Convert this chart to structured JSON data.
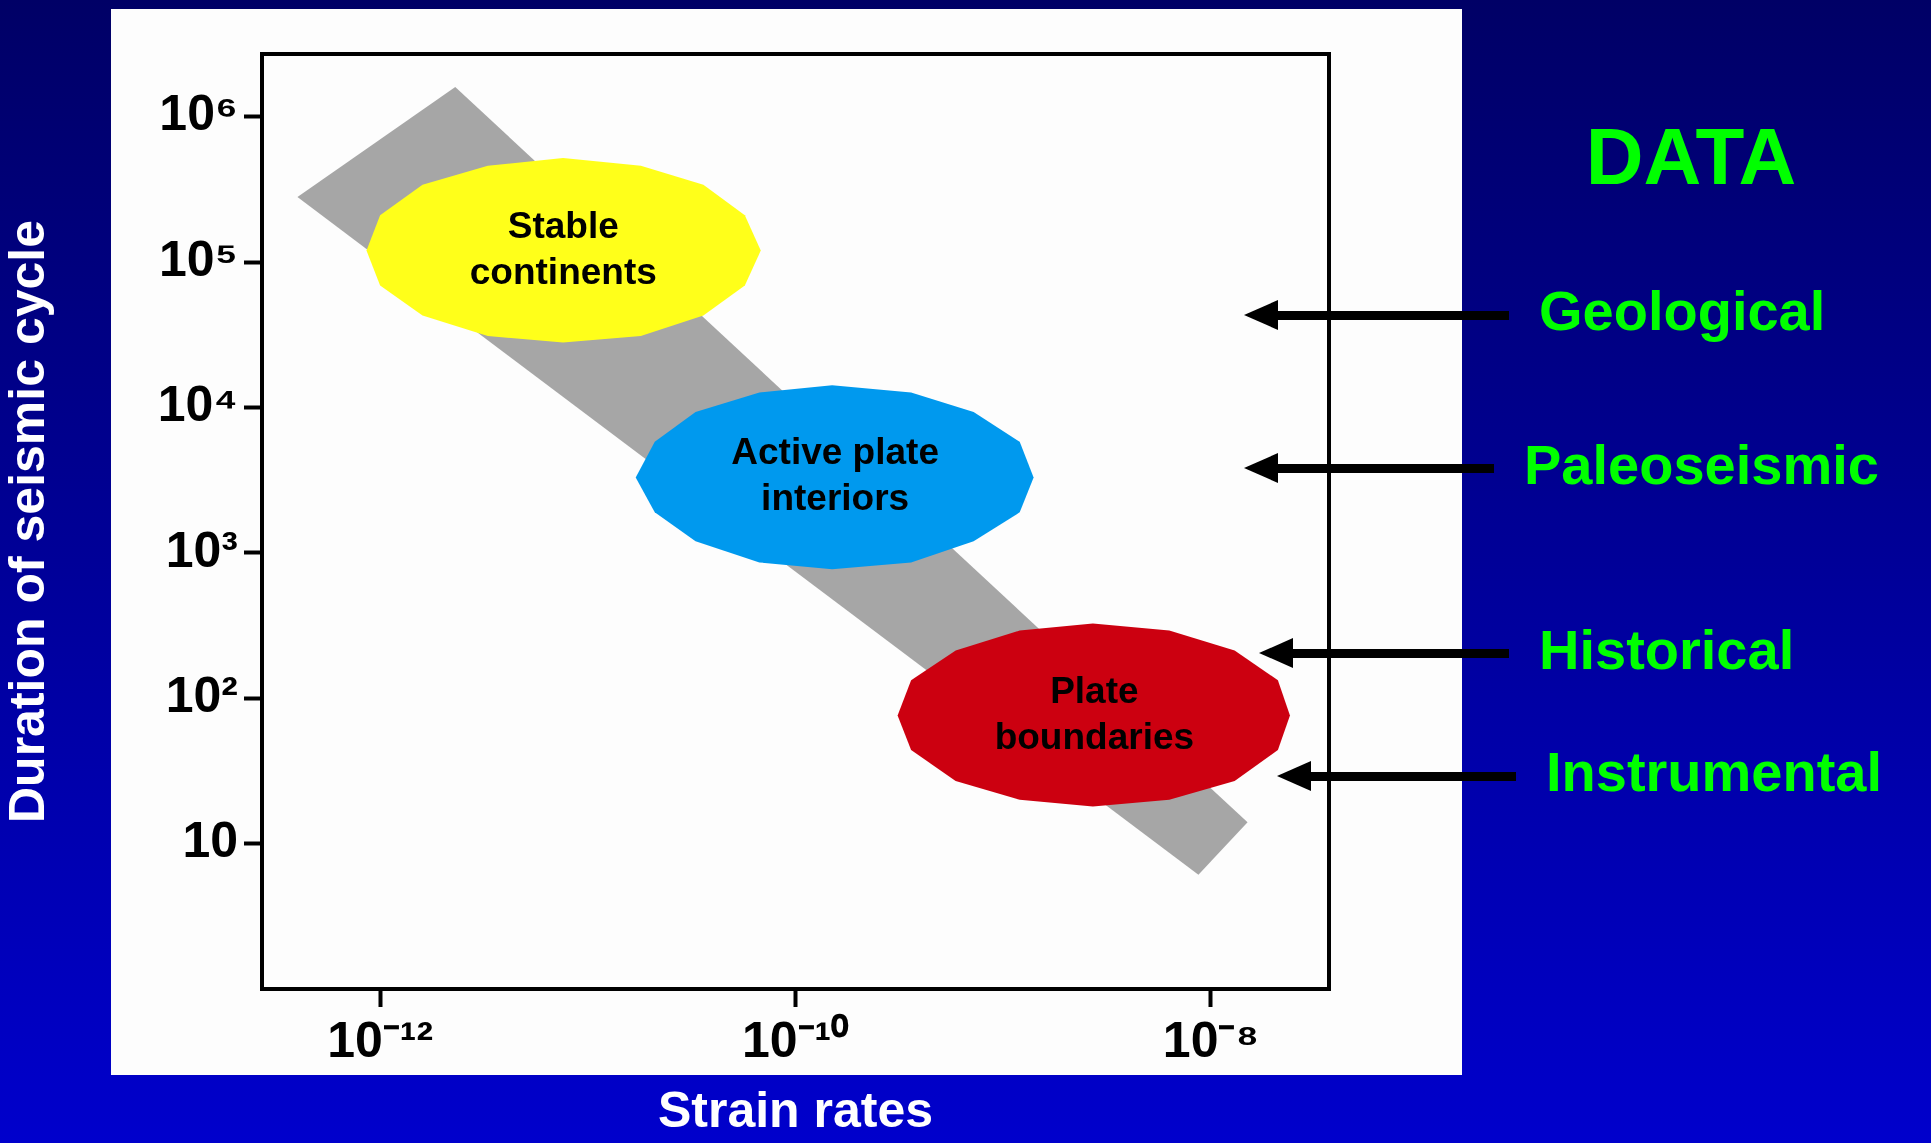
{
  "chart_data": {
    "type": "area",
    "xlabel": "Strain rates",
    "ylabel": "Duration of seismic cycle",
    "log": "xy",
    "grid": false,
    "legend": false,
    "xlim": [
      2.7e-13,
      3.7e-08
    ],
    "ylim": [
      1,
      2700000.0
    ],
    "xticks": [
      {
        "value": 1e-12,
        "label": "10⁻¹²"
      },
      {
        "value": 1e-10,
        "label": "10⁻¹⁰"
      },
      {
        "value": 1e-08,
        "label": "10⁻⁸"
      }
    ],
    "yticks": [
      10,
      {
        "value": 100,
        "label": "10²"
      },
      {
        "value": 1000,
        "label": "10³"
      },
      {
        "value": 10000,
        "label": "10⁴"
      },
      {
        "value": 100000,
        "label": "10⁵"
      },
      {
        "value": 1000000,
        "label": "10⁶"
      }
    ],
    "series": [
      {
        "color": "#a6a6a6",
        "x": [
          4e-13,
          2.3e-12,
          1.5e-08,
          8.7e-09
        ],
        "values": [
          280000.0,
          1600000.0,
          14,
          6.1
        ]
      },
      {
        "name": "Stable continents",
        "color": "#ffff1a",
        "x": [
          6.8e-11,
          5.7e-11,
          3.6e-11,
          1.8e-11,
          7.6e-12,
          3.3e-12,
          1.6e-12,
          1e-12,
          8.6e-13,
          1e-12,
          1.6e-12,
          3.3e-12,
          7.6e-12,
          1.8e-11,
          3.6e-11,
          5.7e-11
        ],
        "values": [
          120000.0,
          210000.0,
          340000.0,
          460000.0,
          520000.0,
          460000.0,
          340000.0,
          210000.0,
          120000.0,
          69000.0,
          43000.0,
          31000.0,
          28000.0,
          31000.0,
          43000.0,
          69000.0
        ]
      },
      {
        "name": "Active plate interiors",
        "color": "#0099ee",
        "x": [
          1.4e-09,
          1.2e-09,
          7.2e-10,
          3.6e-10,
          1.5e-10,
          6.7e-11,
          3.3e-11,
          2.1e-11,
          1.7e-11,
          2.1e-11,
          3.3e-11,
          6.7e-11,
          1.5e-10,
          3.6e-10,
          7.2e-10,
          1.2e-09
        ],
        "values": [
          3300,
          5800,
          9300,
          12700,
          14200,
          12700,
          9300,
          5800,
          3300,
          1900,
          1200,
          860,
          770,
          860,
          1200,
          1900
        ]
      },
      {
        "name": "Plate boundaries",
        "color": "#cc0010",
        "x": [
          2.4e-08,
          2.1e-08,
          1.3e-08,
          6.3e-09,
          2.7e-09,
          1.2e-09,
          5.9e-10,
          3.6e-10,
          3.1e-10,
          3.6e-10,
          5.9e-10,
          1.2e-09,
          2.7e-09,
          6.3e-09,
          1.3e-08,
          2.1e-08
        ],
        "values": [
          76,
          133,
          213,
          292,
          327,
          292,
          213,
          133,
          76,
          44,
          27,
          20,
          18,
          20,
          27,
          44
        ]
      }
    ],
    "annotations": [
      "DATA",
      "Geological",
      "Paleoseismic",
      "Historical",
      "Instrumental"
    ]
  }
}
